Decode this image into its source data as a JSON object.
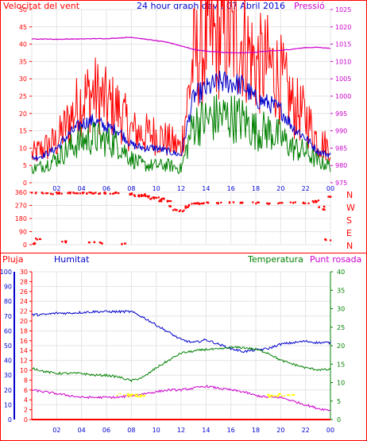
{
  "chart_data": [
    {
      "type": "line",
      "title": "24 hour graph day : 07 Abril 2016",
      "ylabel_left": "Velocitat del vent",
      "ylabel_right": "Pressió",
      "ylim_left": [
        0,
        50
      ],
      "ylim_right": [
        975,
        1025
      ],
      "yticks_left": [
        0,
        5,
        10,
        15,
        20,
        25,
        30,
        35,
        40,
        45,
        50
      ],
      "yticks_right": [
        975,
        980,
        985,
        990,
        995,
        1000,
        1005,
        1010,
        1015,
        1020,
        1025
      ],
      "xticks": [
        "02",
        "04",
        "06",
        "08",
        "10",
        "12",
        "14",
        "16",
        "18",
        "20",
        "22",
        "00"
      ],
      "x": [
        0,
        1,
        2,
        3,
        4,
        5,
        6,
        7,
        8,
        9,
        10,
        11,
        12,
        13,
        14,
        15,
        16,
        17,
        18,
        19,
        20,
        21,
        22,
        23,
        24
      ],
      "series": [
        {
          "color": "#ff0000",
          "values": [
            8,
            10,
            12,
            18,
            24,
            26,
            23,
            21,
            15,
            14,
            14,
            12,
            10,
            36,
            40,
            42,
            42,
            41,
            34,
            34,
            30,
            22,
            19,
            12,
            10
          ]
        },
        {
          "color": "#0000cc",
          "values": [
            7,
            8,
            10,
            14,
            17,
            18,
            16,
            15,
            11,
            10,
            10,
            9,
            8,
            25,
            27,
            29,
            29,
            28,
            24,
            23,
            21,
            16,
            13,
            9,
            8
          ]
        },
        {
          "color": "#008000",
          "values": [
            4,
            5,
            7,
            10,
            12,
            13,
            12,
            11,
            7,
            5,
            5,
            5,
            4,
            17,
            18,
            19,
            19,
            18,
            15,
            15,
            13,
            10,
            9,
            6,
            5
          ]
        },
        {
          "color": "#cc00cc",
          "values": [
            1016.5,
            1016.5,
            1016.4,
            1016.5,
            1016.5,
            1016.6,
            1016.6,
            1016.8,
            1017,
            1016.5,
            1016,
            1015.5,
            1014.5,
            1013.5,
            1013,
            1012.7,
            1012.5,
            1012.5,
            1012.7,
            1013,
            1013.2,
            1013.6,
            1014,
            1014.1,
            1013.8
          ]
        }
      ]
    },
    {
      "type": "scatter",
      "ylabel_right": [
        "N",
        "W",
        "S",
        "E",
        "N"
      ],
      "ylim": [
        0,
        360
      ],
      "yticks": [
        0,
        90,
        180,
        270,
        360
      ],
      "xticks": [
        "02",
        "04",
        "06",
        "08",
        "10",
        "12",
        "14",
        "16",
        "18",
        "20",
        "22",
        "00"
      ],
      "series": [
        {
          "color": "#ff0000",
          "points": [
            [
              0.1,
              355
            ],
            [
              0.3,
              10
            ],
            [
              0.5,
              40
            ],
            [
              1,
              355
            ],
            [
              1.5,
              352
            ],
            [
              2,
              356
            ],
            [
              2.3,
              356
            ],
            [
              2.6,
              20
            ],
            [
              3,
              356
            ],
            [
              3.5,
              354
            ],
            [
              4,
              357
            ],
            [
              4.5,
              355
            ],
            [
              4.8,
              15
            ],
            [
              5,
              355
            ],
            [
              5.3,
              355
            ],
            [
              5.5,
              12
            ],
            [
              6,
              356
            ],
            [
              6.5,
              355
            ],
            [
              7,
              356
            ],
            [
              7.4,
              5
            ],
            [
              7.8,
              350
            ],
            [
              8,
              346
            ],
            [
              8.4,
              338
            ],
            [
              8.7,
              336
            ],
            [
              9,
              345
            ],
            [
              9.3,
              330
            ],
            [
              9.6,
              318
            ],
            [
              10,
              322
            ],
            [
              10.3,
              303
            ],
            [
              10.6,
              315
            ],
            [
              11,
              300
            ],
            [
              11.3,
              265
            ],
            [
              11.6,
              240
            ],
            [
              12,
              232
            ],
            [
              12.3,
              255
            ],
            [
              12.6,
              270
            ],
            [
              13,
              280
            ],
            [
              13.3,
              285
            ],
            [
              13.6,
              283
            ],
            [
              14,
              288
            ],
            [
              15,
              287
            ],
            [
              16,
              289
            ],
            [
              17,
              287
            ],
            [
              18,
              288
            ],
            [
              19,
              285
            ],
            [
              20,
              288
            ],
            [
              21,
              290
            ],
            [
              22,
              287
            ],
            [
              22.6,
              295
            ],
            [
              23,
              300
            ],
            [
              23.3,
              260
            ],
            [
              23.6,
              240
            ],
            [
              23.8,
              35
            ],
            [
              24,
              330
            ]
          ]
        }
      ]
    },
    {
      "type": "line",
      "ylabel_left": "Pluja",
      "ylabel_left_2": "Humitat",
      "ylabel_right": "Temperatura",
      "ylabel_right_2": "Punt rosada",
      "ylim_humidity": [
        0,
        100
      ],
      "yticks_humidity": [
        0,
        10,
        20,
        30,
        40,
        50,
        60,
        70,
        80,
        90,
        100
      ],
      "ylim_rain": [
        0,
        30
      ],
      "yticks_rain": [
        0,
        2,
        4,
        6,
        8,
        10,
        12,
        14,
        16,
        18,
        20,
        22,
        24,
        26,
        28,
        30
      ],
      "ylim_temperature": [
        0,
        40
      ],
      "yticks_temperature": [
        0,
        5,
        10,
        15,
        20,
        25,
        30,
        35,
        40
      ],
      "xticks": [
        "02",
        "04",
        "06",
        "08",
        "10",
        "12",
        "14",
        "16",
        "18",
        "20",
        "22",
        "00"
      ],
      "x": [
        0,
        1,
        2,
        3,
        4,
        5,
        6,
        7,
        8,
        9,
        10,
        11,
        12,
        13,
        14,
        15,
        16,
        17,
        18,
        19,
        20,
        21,
        22,
        23,
        24
      ],
      "series": [
        {
          "color": "#0000cc",
          "values": [
            71,
            71,
            72,
            72,
            72.5,
            73,
            73,
            73,
            73,
            69,
            64,
            59,
            54,
            52,
            54,
            51,
            48,
            46,
            47,
            48,
            51,
            52,
            53,
            52,
            52
          ]
        },
        {
          "color": "#008000",
          "values": [
            14,
            13,
            12.5,
            12.5,
            12.5,
            12,
            12,
            11.5,
            10.5,
            11.5,
            14,
            16,
            18,
            18.5,
            19,
            19,
            19.5,
            19.5,
            19,
            18,
            16,
            15,
            14,
            13.5,
            13.5
          ]
        },
        {
          "color": "#cc00cc",
          "values": [
            8,
            7.5,
            7,
            6.5,
            6,
            6,
            6,
            6,
            6.5,
            7,
            7.5,
            8,
            8,
            8.5,
            9,
            8.5,
            8,
            7.5,
            6.5,
            6,
            6,
            5,
            4,
            3,
            2.5
          ]
        },
        {
          "color": "#ffff00",
          "values": [
            null,
            null,
            null,
            null,
            null,
            null,
            null,
            6.8,
            6.8,
            null,
            null,
            null,
            null,
            null,
            null,
            null,
            null,
            null,
            null,
            6.5,
            6.8,
            null,
            null,
            null,
            null
          ]
        },
        {
          "color": "#ff0000",
          "values": [
            0,
            0,
            0,
            0,
            0,
            0,
            0,
            0,
            0,
            0,
            0,
            0,
            0,
            0,
            0,
            0,
            0,
            0,
            0,
            0,
            0,
            0,
            0,
            0,
            0
          ]
        }
      ]
    }
  ]
}
